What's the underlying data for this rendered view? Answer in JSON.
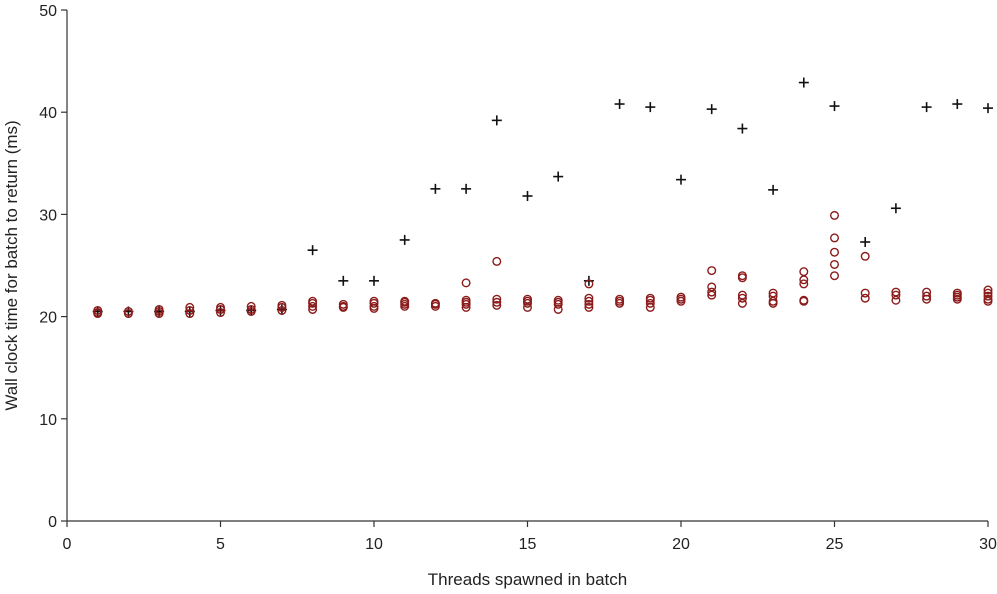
{
  "chart_data": {
    "type": "scatter",
    "title": "",
    "xlabel": "Threads spawned in batch",
    "ylabel": "Wall clock time for batch to return (ms)",
    "xlim": [
      0,
      30
    ],
    "ylim": [
      0,
      50
    ],
    "xticks": [
      0,
      5,
      10,
      15,
      20,
      25,
      30
    ],
    "yticks": [
      0,
      10,
      20,
      30,
      40,
      50
    ],
    "grid": false,
    "legend": "none",
    "colors": {
      "plus": "#111111",
      "circle": "#8b1a1a",
      "axis": "#333333"
    },
    "series": [
      {
        "marker": "plus",
        "x": [
          1,
          2,
          3,
          4,
          5,
          6,
          7,
          8,
          9,
          10,
          11,
          12,
          13,
          14,
          15,
          16,
          17,
          18,
          19,
          20,
          21,
          22,
          23,
          24,
          25,
          26,
          27,
          28,
          29,
          30
        ],
        "y": [
          20.5,
          20.5,
          20.5,
          20.5,
          20.6,
          20.6,
          20.7,
          26.5,
          23.5,
          23.5,
          27.5,
          32.5,
          32.5,
          39.2,
          31.8,
          33.7,
          23.5,
          40.8,
          40.5,
          33.4,
          40.3,
          38.4,
          32.4,
          42.9,
          40.6,
          27.3,
          30.6,
          40.5,
          40.8,
          40.4
        ]
      },
      {
        "marker": "circle",
        "x": [
          1,
          1,
          1,
          2,
          2,
          3,
          3,
          3,
          4,
          4,
          4,
          5,
          5,
          5,
          6,
          6,
          6,
          7,
          7,
          7,
          8,
          8,
          8,
          8,
          9,
          9,
          9,
          10,
          10,
          10,
          10,
          11,
          11,
          11,
          11,
          12,
          12,
          12,
          13,
          13,
          13,
          13,
          13,
          14,
          14,
          14,
          14,
          15,
          15,
          15,
          15,
          16,
          16,
          16,
          16,
          17,
          17,
          17,
          17,
          17,
          18,
          18,
          18,
          19,
          19,
          19,
          19,
          20,
          20,
          20,
          21,
          21,
          21,
          21,
          22,
          22,
          22,
          22,
          22,
          23,
          23,
          23,
          23,
          24,
          24,
          24,
          24,
          24,
          25,
          25,
          25,
          25,
          25,
          26,
          26,
          26,
          27,
          27,
          27,
          28,
          28,
          28,
          29,
          29,
          29,
          29,
          30,
          30,
          30,
          30,
          30
        ],
        "y": [
          20.3,
          20.4,
          20.6,
          20.3,
          20.5,
          20.3,
          20.5,
          20.7,
          20.3,
          20.6,
          20.9,
          20.4,
          20.7,
          20.9,
          20.5,
          20.7,
          21.0,
          20.6,
          20.9,
          21.1,
          20.7,
          21.0,
          21.3,
          21.5,
          20.9,
          21.0,
          21.2,
          20.8,
          21.0,
          21.3,
          21.5,
          21.0,
          21.2,
          21.4,
          21.5,
          21.0,
          21.2,
          21.3,
          20.9,
          21.2,
          21.4,
          21.6,
          23.3,
          21.1,
          21.4,
          21.7,
          25.4,
          20.9,
          21.3,
          21.5,
          21.7,
          20.7,
          21.2,
          21.4,
          21.6,
          20.9,
          21.2,
          21.5,
          21.8,
          23.2,
          21.3,
          21.5,
          21.7,
          20.9,
          21.3,
          21.6,
          21.8,
          21.5,
          21.7,
          21.9,
          22.1,
          22.4,
          22.9,
          24.5,
          21.3,
          21.8,
          22.1,
          23.8,
          24.0,
          21.3,
          21.5,
          22.0,
          22.3,
          21.5,
          21.6,
          23.2,
          23.6,
          24.4,
          24.0,
          25.1,
          26.3,
          27.7,
          29.9,
          21.8,
          22.3,
          25.9,
          21.6,
          22.1,
          22.4,
          21.7,
          22.0,
          22.4,
          21.7,
          21.9,
          22.1,
          22.3,
          21.5,
          21.7,
          22.0,
          22.3,
          22.6
        ]
      }
    ]
  }
}
